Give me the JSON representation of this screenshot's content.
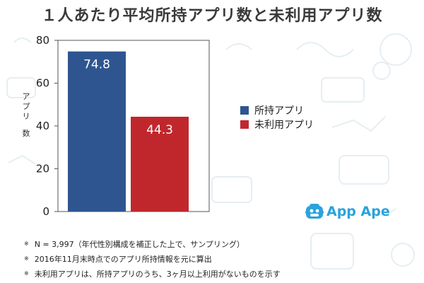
{
  "chart_data": {
    "type": "bar",
    "title": "１人あたり平均所持アプリ数と未利用アプリ数",
    "ylabel": "アプリ数",
    "ylim": [
      0,
      80
    ],
    "yticks": [
      0,
      20,
      40,
      60,
      80
    ],
    "grid": false,
    "legend_position": "right",
    "series": [
      {
        "name": "所持アプリ",
        "value": 74.8,
        "color": "#2e5590"
      },
      {
        "name": "未利用アプリ",
        "value": 44.3,
        "color": "#c0272d"
      }
    ]
  },
  "logo": {
    "text": "App Ape"
  },
  "notes": [
    "N = 3,997（年代性別構成を補正した上で、サンプリング）",
    "2016年11月末時点でのアプリ所持情報を元に算出",
    "未利用アプリは、所持アプリのうち、3ヶ月以上利用がないものを示す"
  ],
  "note_mark": "※",
  "colors": {
    "background": "#ffffff",
    "doodle": "#e6eef2",
    "logo": "#2aa3dc"
  }
}
